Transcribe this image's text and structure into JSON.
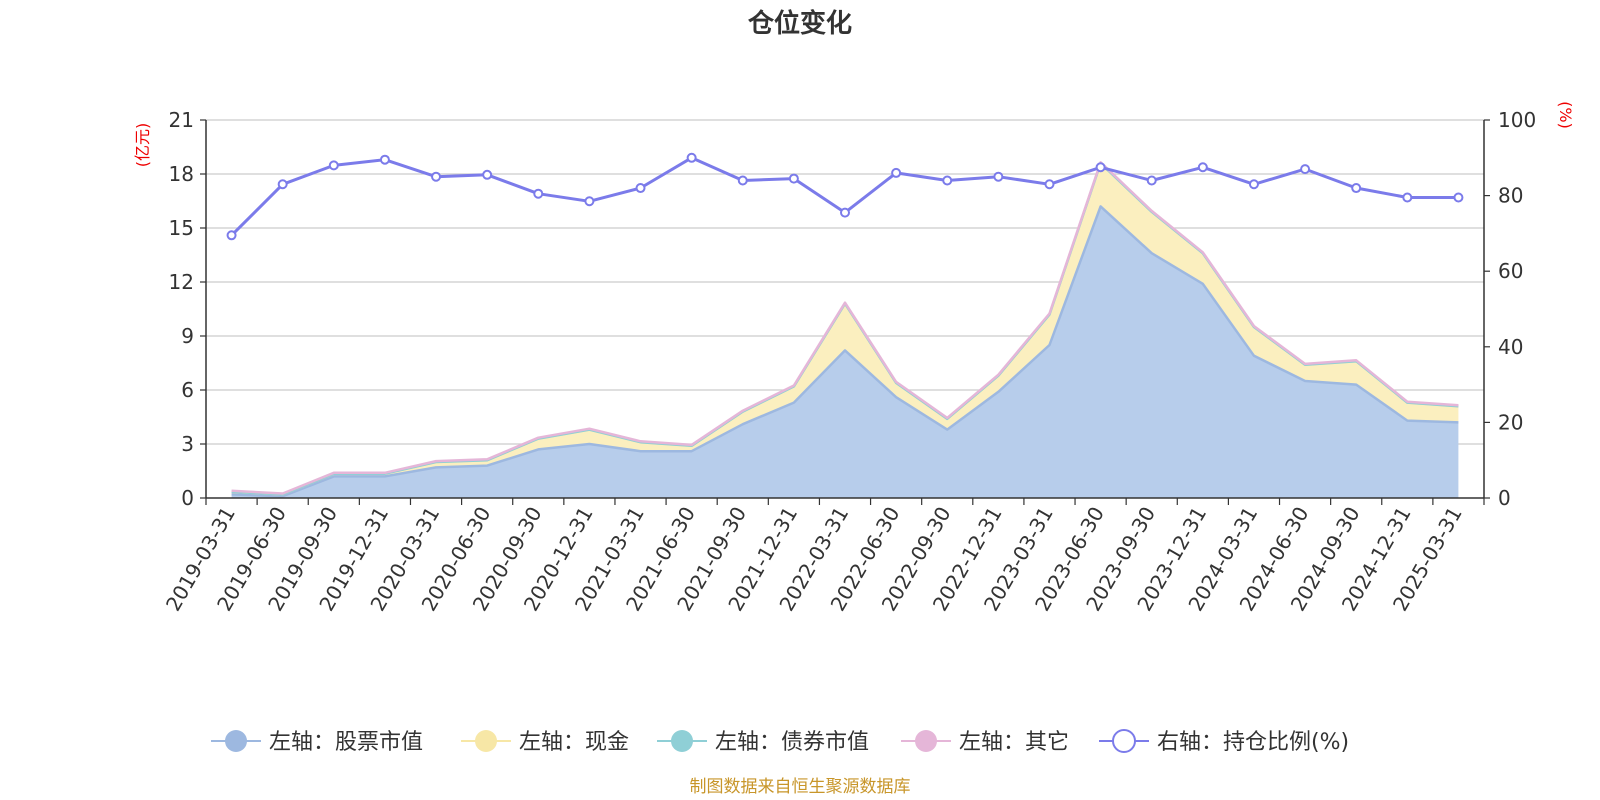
{
  "chart_data": {
    "type": "area",
    "title": "仓位变化",
    "left_axis": {
      "label": "(亿元)",
      "min": 0,
      "max": 21,
      "ticks": [
        0,
        3,
        6,
        9,
        12,
        15,
        18,
        21
      ]
    },
    "right_axis": {
      "label": "(%)",
      "min": 0,
      "max": 100,
      "ticks": [
        0,
        20,
        40,
        60,
        80,
        100
      ]
    },
    "categories": [
      "2019-03-31",
      "2019-06-30",
      "2019-09-30",
      "2019-12-31",
      "2020-03-31",
      "2020-06-30",
      "2020-09-30",
      "2020-12-31",
      "2021-03-31",
      "2021-06-30",
      "2021-09-30",
      "2021-12-31",
      "2022-03-31",
      "2022-06-30",
      "2022-09-30",
      "2022-12-31",
      "2023-03-31",
      "2023-06-30",
      "2023-09-30",
      "2023-12-31",
      "2024-03-31",
      "2024-06-30",
      "2024-09-30",
      "2024-12-31",
      "2025-03-31"
    ],
    "series": [
      {
        "name": "左轴：股票市值",
        "axis": "left",
        "stack": true,
        "color": "#9db8e0",
        "fill": "#b7cdeb",
        "values": [
          0.2,
          0.1,
          1.2,
          1.2,
          1.7,
          1.8,
          2.7,
          3.0,
          2.6,
          2.6,
          4.1,
          5.3,
          8.2,
          5.6,
          3.8,
          5.9,
          8.5,
          16.2,
          13.6,
          11.9,
          7.9,
          6.5,
          6.3,
          4.3,
          4.2
        ]
      },
      {
        "name": "左轴：现金",
        "axis": "left",
        "stack": true,
        "color": "#f7e7a6",
        "fill": "#fbefbf",
        "values": [
          0.15,
          0.1,
          0.15,
          0.15,
          0.3,
          0.3,
          0.6,
          0.8,
          0.5,
          0.3,
          0.7,
          0.9,
          2.6,
          0.8,
          0.6,
          0.9,
          1.7,
          2.4,
          2.3,
          1.7,
          1.6,
          0.9,
          1.3,
          1.0,
          0.9
        ]
      },
      {
        "name": "左轴：债券市值",
        "axis": "left",
        "stack": true,
        "color": "#8fcfd6",
        "fill": "#a6dbe0",
        "values": [
          0,
          0,
          0,
          0,
          0,
          0,
          0,
          0,
          0,
          0,
          0,
          0,
          0,
          0,
          0,
          0,
          0,
          0,
          0,
          0,
          0,
          0,
          0,
          0,
          0
        ]
      },
      {
        "name": "左轴：其它",
        "axis": "left",
        "stack": true,
        "color": "#e5b6d8",
        "fill": "#efc9e4",
        "values": [
          0.05,
          0.05,
          0.05,
          0.05,
          0.05,
          0.05,
          0.05,
          0.05,
          0.05,
          0.05,
          0.05,
          0.05,
          0.05,
          0.05,
          0.05,
          0.05,
          0.05,
          0.05,
          0.05,
          0.05,
          0.05,
          0.05,
          0.05,
          0.05,
          0.05
        ]
      },
      {
        "name": "右轴：持仓比例(%)",
        "axis": "right",
        "stack": false,
        "color": "#7b7bea",
        "values": [
          69.5,
          83,
          88,
          89.5,
          85,
          85.5,
          80.5,
          78.5,
          82,
          90,
          84,
          84.5,
          75.5,
          86,
          84,
          85,
          83,
          87.5,
          84,
          87.5,
          83,
          87,
          82,
          79.5,
          79.5
        ]
      }
    ],
    "legend_position": "bottom",
    "grid": true
  },
  "footer": {
    "source": "制图数据来自恒生聚源数据库"
  }
}
